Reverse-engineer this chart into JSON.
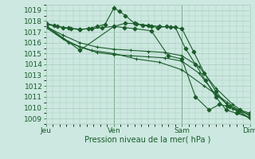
{
  "background_color": "#cce8e0",
  "grid_color": "#aaccbb",
  "line_color": "#1a5c2a",
  "xlabel": "Pression niveau de la mer( hPa )",
  "x_ticks": [
    0,
    1,
    2,
    3
  ],
  "x_tick_labels": [
    "Jeu",
    "Ven",
    "Sam",
    "Dim"
  ],
  "ylim": [
    1008.5,
    1019.5
  ],
  "yticks": [
    1009,
    1010,
    1011,
    1012,
    1013,
    1014,
    1015,
    1016,
    1017,
    1018,
    1019
  ],
  "lines": [
    {
      "x": [
        0.0,
        0.12,
        0.25,
        0.37,
        0.5,
        0.62,
        0.75,
        0.87,
        1.0,
        1.08,
        1.17,
        1.3,
        1.42,
        1.55,
        1.65,
        1.78,
        1.9,
        2.05,
        2.2,
        2.35,
        2.5,
        2.65,
        2.8,
        3.0
      ],
      "y": [
        1017.8,
        1017.6,
        1017.4,
        1017.3,
        1017.2,
        1017.3,
        1017.5,
        1017.7,
        1019.2,
        1018.9,
        1018.5,
        1017.8,
        1017.6,
        1017.5,
        1017.4,
        1017.5,
        1017.45,
        1015.5,
        1014.0,
        1012.5,
        1011.0,
        1009.8,
        1009.5,
        1009.1
      ],
      "marker": "D",
      "ms": 2.5,
      "lw": 0.8
    },
    {
      "x": [
        0.0,
        0.17,
        0.33,
        0.5,
        0.67,
        0.83,
        1.0,
        1.17,
        1.33,
        1.5,
        1.67,
        1.83,
        2.0,
        2.17,
        2.33,
        2.5,
        2.67,
        2.83,
        3.0
      ],
      "y": [
        1017.7,
        1017.5,
        1017.35,
        1017.25,
        1017.3,
        1017.4,
        1017.5,
        1017.8,
        1017.75,
        1017.6,
        1017.5,
        1017.45,
        1017.3,
        1015.2,
        1013.2,
        1011.5,
        1010.2,
        1009.7,
        1009.4
      ],
      "marker": "D",
      "ms": 2.5,
      "lw": 0.8
    },
    {
      "x": [
        0.0,
        0.25,
        0.5,
        0.75,
        1.0,
        1.25,
        1.5,
        1.75,
        2.0,
        2.25,
        2.5,
        2.75,
        3.0
      ],
      "y": [
        1017.5,
        1016.7,
        1016.0,
        1015.6,
        1015.4,
        1015.3,
        1015.2,
        1015.1,
        1014.8,
        1013.8,
        1011.8,
        1010.3,
        1009.2
      ],
      "marker": "+",
      "ms": 3.5,
      "lw": 0.8
    },
    {
      "x": [
        0.0,
        0.25,
        0.5,
        0.75,
        1.0,
        1.25,
        1.5,
        1.75,
        2.0,
        2.25,
        2.5,
        2.75,
        3.0
      ],
      "y": [
        1017.5,
        1016.4,
        1015.6,
        1015.1,
        1014.9,
        1014.8,
        1014.7,
        1014.6,
        1014.3,
        1013.2,
        1011.2,
        1009.9,
        1009.0
      ],
      "marker": "+",
      "ms": 3.5,
      "lw": 0.8
    },
    {
      "x": [
        0.0,
        0.33,
        0.67,
        1.0,
        1.33,
        1.67,
        2.0,
        2.33,
        2.67,
        3.0
      ],
      "y": [
        1017.4,
        1016.0,
        1015.3,
        1015.0,
        1014.5,
        1014.2,
        1013.5,
        1012.0,
        1010.5,
        1009.0
      ],
      "marker": "+",
      "ms": 3.5,
      "lw": 0.8
    },
    {
      "x": [
        0.0,
        0.5,
        1.0,
        1.15,
        1.3,
        1.55,
        1.8,
        2.0,
        2.2,
        2.4,
        2.55,
        2.7,
        2.85,
        3.0
      ],
      "y": [
        1017.6,
        1015.3,
        1017.5,
        1017.4,
        1017.3,
        1017.1,
        1014.8,
        1014.5,
        1011.0,
        1009.8,
        1010.3,
        1010.1,
        1009.8,
        1009.5
      ],
      "marker": "D",
      "ms": 2.5,
      "lw": 0.8
    }
  ]
}
